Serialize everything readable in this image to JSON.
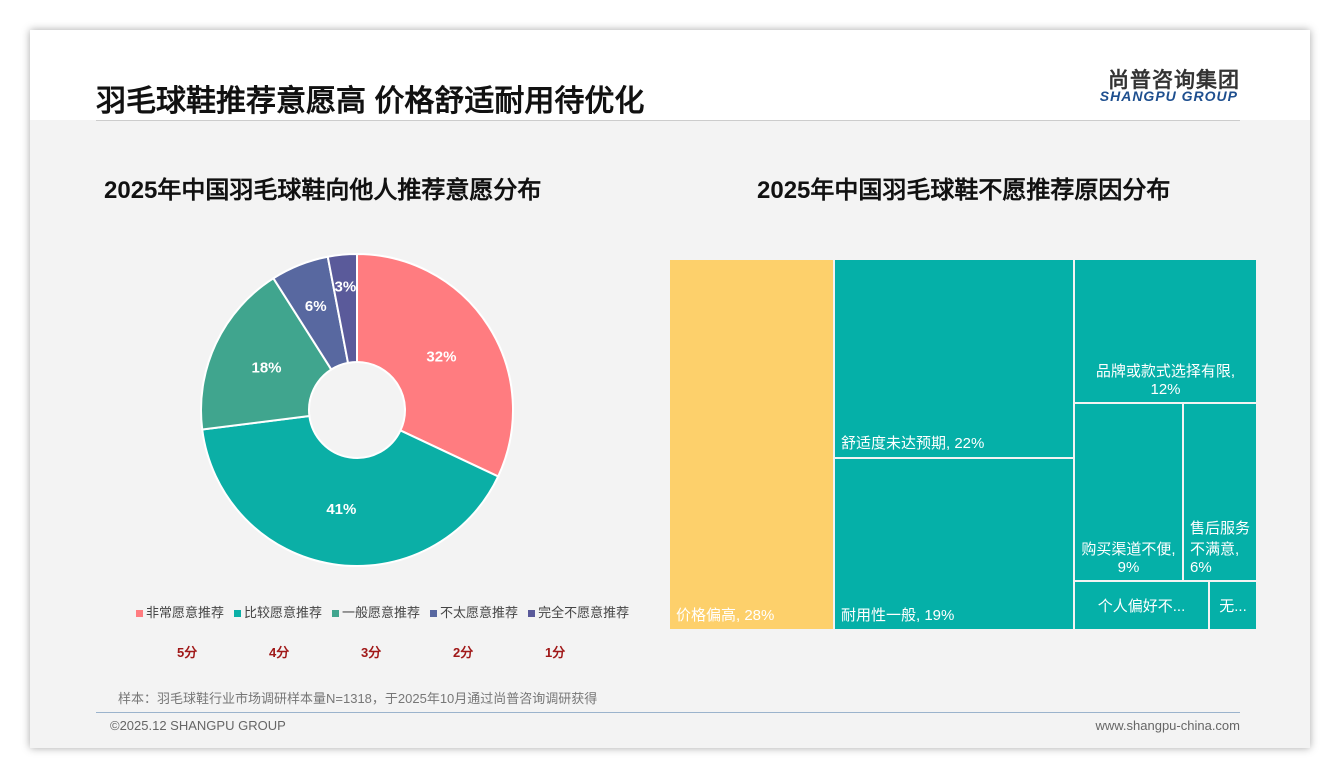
{
  "header": {
    "title": "羽毛球鞋推荐意愿高 价格舒适耐用待优化",
    "logo_cn": "尚普咨询集团",
    "logo_en": "SHANGPU GROUP"
  },
  "footer": {
    "note": "样本：羽毛球鞋行业市场调研样本量N=1318，于2025年10月通过尚普咨询调研获得",
    "copyright": "©2025.12 SHANGPU GROUP",
    "website": "www.shangpu-china.com"
  },
  "chart_data": [
    {
      "type": "pie",
      "title": "2025年中国羽毛球鞋向他人推荐意愿分布",
      "categories": [
        "非常愿意推荐",
        "比较愿意推荐",
        "一般愿意推荐",
        "不太愿意推荐",
        "完全不愿意推荐"
      ],
      "values": [
        32,
        41,
        18,
        6,
        3
      ],
      "labels": [
        "32%",
        "41%",
        "18%",
        "6%",
        "3%"
      ],
      "scores": [
        "5分",
        "4分",
        "3分",
        "2分",
        "1分"
      ],
      "colors": [
        "#FF7C80",
        "#0BAFA6",
        "#40A58E",
        "#5868A0",
        "#5A5A9A"
      ],
      "legend": "bottom"
    },
    {
      "type": "treemap",
      "title": "2025年中国羽毛球鞋不愿推荐原因分布",
      "items": [
        {
          "label": "价格偏高, 28%",
          "value": 28,
          "color": "#FDD06B"
        },
        {
          "label": "舒适度未达预期, 22%",
          "value": 22,
          "color": "#05B0A8"
        },
        {
          "label": "耐用性一般, 19%",
          "value": 19,
          "color": "#05B0A8"
        },
        {
          "label": "品牌或款式选择有限, 12%",
          "value": 12,
          "color": "#05B0A8"
        },
        {
          "label": "购买渠道不便, 9%",
          "value": 9,
          "color": "#05B0A8"
        },
        {
          "label": "售后服务不满意, 6%",
          "value": 6,
          "color": "#05B0A8"
        },
        {
          "label": "个人偏好不...",
          "value": 3,
          "color": "#05B0A8"
        },
        {
          "label": "无...",
          "value": 1,
          "color": "#05B0A8"
        }
      ]
    }
  ]
}
